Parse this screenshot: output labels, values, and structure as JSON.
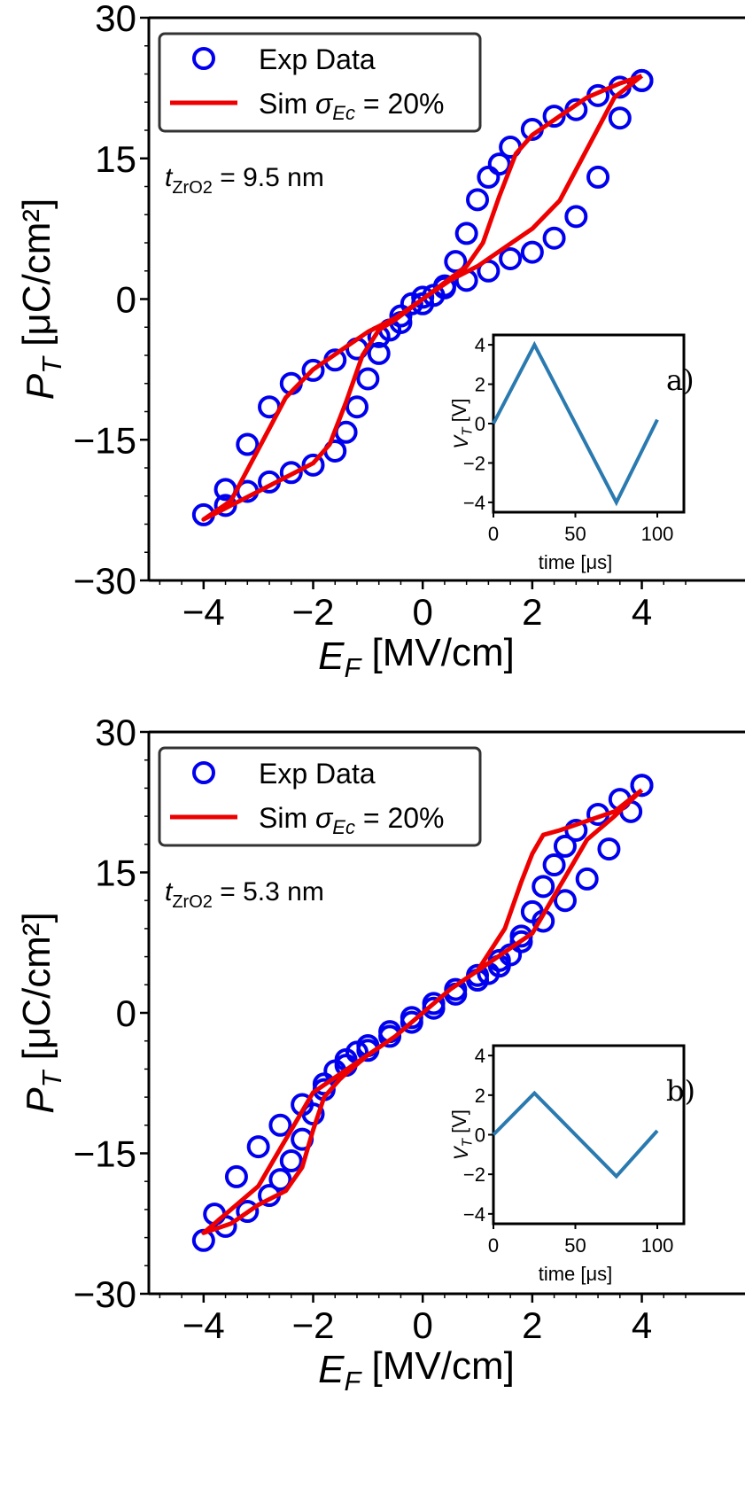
{
  "chart_data": [
    {
      "type": "line",
      "xlabel": "E_F [MV/cm]",
      "ylabel": "P_T [μC/cm²]",
      "xlim": [
        -5.0,
        4.8
      ],
      "ylim": [
        -30,
        30
      ],
      "xticks": [
        "−4",
        "−2",
        "0",
        "2",
        "4"
      ],
      "yticks": [
        "−30",
        "−15",
        "0",
        "15",
        "30"
      ],
      "annotation": "t_ZrO2 = 9.5 nm",
      "panel_label": "a)",
      "legend": {
        "placement": "top-left",
        "entries": [
          "Exp Data",
          "Sim σ_Ec = 20%"
        ]
      },
      "series": [
        {
          "name": "Exp Data",
          "marker": "open-circle",
          "color": "#0000ee",
          "x": [
            4.0,
            3.6,
            3.2,
            2.8,
            2.4,
            2.0,
            1.6,
            1.4,
            1.2,
            1.0,
            0.8,
            0.6,
            0.4,
            0.2,
            0.0,
            -0.4,
            -0.8,
            -1.2,
            -1.6,
            -2.0,
            -2.4,
            -2.8,
            -3.2,
            -3.6,
            -4.0,
            -3.6,
            -3.2,
            -2.8,
            -2.4,
            -2.0,
            -1.6,
            -1.4,
            -1.2,
            -1.0,
            -0.8,
            -0.6,
            -0.4,
            -0.2,
            0.0,
            0.4,
            0.8,
            1.2,
            1.6,
            2.0,
            2.4,
            2.8,
            3.2,
            3.6,
            4.0
          ],
          "y": [
            23.3,
            22.6,
            21.7,
            20.2,
            19.5,
            18.1,
            16.2,
            14.4,
            13.0,
            10.6,
            7.0,
            4.0,
            1.4,
            0.4,
            -0.5,
            -2.5,
            -4.0,
            -5.3,
            -6.5,
            -7.6,
            -9.0,
            -11.5,
            -15.5,
            -20.3,
            -23.0,
            -22.0,
            -20.5,
            -19.5,
            -18.5,
            -17.7,
            -16.2,
            -14.2,
            -11.5,
            -8.5,
            -5.8,
            -3.3,
            -1.8,
            -0.5,
            0.2,
            1.2,
            2.0,
            3.0,
            4.3,
            5.0,
            6.5,
            8.8,
            13.0,
            19.3,
            23.3
          ]
        },
        {
          "name": "Sim σ_Ec = 20%",
          "marker": "line",
          "color": "#ee0000",
          "x": [
            4.0,
            3.6,
            3.0,
            2.5,
            2.0,
            1.7,
            1.4,
            1.1,
            0.8,
            0.5,
            0.0,
            -0.5,
            -1.0,
            -1.5,
            -2.0,
            -2.5,
            -3.0,
            -3.5,
            -4.0,
            -3.5,
            -3.0,
            -2.5,
            -2.0,
            -1.7,
            -1.4,
            -1.1,
            -0.8,
            -0.5,
            0.0,
            0.5,
            1.0,
            1.5,
            2.0,
            2.5,
            3.0,
            3.5,
            4.0
          ],
          "y": [
            23.8,
            23.0,
            21.5,
            19.5,
            17.5,
            15.5,
            11.0,
            6.0,
            3.5,
            2.2,
            0.0,
            -2.0,
            -3.5,
            -5.5,
            -7.5,
            -10.5,
            -16.0,
            -21.5,
            -23.5,
            -22.0,
            -20.5,
            -19.0,
            -17.5,
            -15.5,
            -11.0,
            -6.0,
            -3.3,
            -2.2,
            0.0,
            2.0,
            3.5,
            5.5,
            7.5,
            10.5,
            16.0,
            21.5,
            23.8
          ]
        }
      ],
      "inset": {
        "type": "line",
        "xlabel": "time [μs]",
        "ylabel": "V_T [V]",
        "xlim": [
          0,
          100
        ],
        "ylim": [
          -4.5,
          4.5
        ],
        "xticks": [
          "0",
          "50",
          "100"
        ],
        "yticks": [
          "−4",
          "−2",
          "0",
          "2",
          "4"
        ],
        "x": [
          0,
          25,
          75,
          100
        ],
        "y": [
          0,
          4.0,
          -4.0,
          0.2
        ],
        "color": "#2a7ab0"
      }
    },
    {
      "type": "line",
      "xlabel": "E_F [MV/cm]",
      "ylabel": "P_T [μC/cm²]",
      "xlim": [
        -5.0,
        4.8
      ],
      "ylim": [
        -30,
        30
      ],
      "xticks": [
        "−4",
        "−2",
        "0",
        "2",
        "4"
      ],
      "yticks": [
        "−30",
        "−15",
        "0",
        "15",
        "30"
      ],
      "annotation": "t_ZrO2 = 5.3 nm",
      "panel_label": "b)",
      "legend": {
        "placement": "top-left",
        "entries": [
          "Exp Data",
          "Sim σ_Ec = 20%"
        ]
      },
      "series": [
        {
          "name": "Exp Data",
          "marker": "open-circle",
          "color": "#0000ee",
          "x": [
            4.0,
            3.6,
            3.2,
            2.8,
            2.6,
            2.4,
            2.2,
            2.0,
            1.8,
            1.6,
            1.4,
            1.2,
            1.0,
            0.6,
            0.2,
            -0.2,
            -0.6,
            -1.0,
            -1.4,
            -1.8,
            -2.2,
            -2.6,
            -3.0,
            -3.4,
            -3.8,
            -4.0,
            -3.6,
            -3.2,
            -2.8,
            -2.6,
            -2.4,
            -2.2,
            -2.0,
            -1.8,
            -1.6,
            -1.4,
            -1.2,
            -1.0,
            -0.6,
            -0.2,
            0.2,
            0.6,
            1.0,
            1.4,
            1.8,
            2.2,
            2.6,
            3.0,
            3.4,
            3.8,
            4.0
          ],
          "y": [
            24.3,
            22.8,
            21.2,
            19.5,
            17.8,
            15.8,
            13.5,
            10.8,
            8.2,
            6.2,
            5.0,
            4.2,
            3.5,
            2.0,
            0.5,
            -1.0,
            -2.5,
            -4.0,
            -5.6,
            -7.6,
            -9.8,
            -12.0,
            -14.3,
            -17.5,
            -21.5,
            -24.3,
            -22.8,
            -21.2,
            -19.5,
            -17.8,
            -15.8,
            -13.5,
            -10.8,
            -8.2,
            -6.2,
            -5.0,
            -4.2,
            -3.5,
            -2.0,
            -0.5,
            1.0,
            2.5,
            4.0,
            5.6,
            7.6,
            9.8,
            12.0,
            14.3,
            17.5,
            21.5,
            24.3
          ]
        },
        {
          "name": "Sim σ_Ec = 20%",
          "marker": "line",
          "color": "#ee0000",
          "x": [
            4.0,
            3.5,
            3.0,
            2.5,
            2.2,
            2.0,
            1.8,
            1.5,
            1.0,
            0.5,
            0.0,
            -0.5,
            -1.0,
            -1.5,
            -2.0,
            -2.3,
            -2.6,
            -3.0,
            -3.5,
            -4.0,
            -3.5,
            -3.0,
            -2.5,
            -2.2,
            -2.0,
            -1.8,
            -1.5,
            -1.0,
            -0.5,
            0.0,
            0.5,
            1.0,
            1.5,
            2.0,
            2.3,
            2.6,
            3.0,
            3.5,
            4.0
          ],
          "y": [
            23.8,
            21.5,
            20.5,
            19.5,
            19.0,
            17.0,
            14.0,
            9.0,
            4.5,
            2.5,
            0.0,
            -2.5,
            -4.5,
            -6.5,
            -8.5,
            -11.5,
            -14.5,
            -18.5,
            -21.0,
            -23.5,
            -22.5,
            -20.5,
            -19.0,
            -16.5,
            -12.5,
            -9.0,
            -7.0,
            -4.5,
            -2.5,
            0.0,
            2.5,
            4.5,
            6.5,
            8.5,
            11.5,
            14.5,
            18.5,
            21.0,
            23.8
          ]
        }
      ],
      "inset": {
        "type": "line",
        "xlabel": "time [μs]",
        "ylabel": "V_T [V]",
        "xlim": [
          0,
          100
        ],
        "ylim": [
          -4.5,
          4.5
        ],
        "xticks": [
          "0",
          "50",
          "100"
        ],
        "yticks": [
          "−4",
          "−2",
          "0",
          "2",
          "4"
        ],
        "x": [
          0,
          25,
          75,
          100
        ],
        "y": [
          0,
          2.1,
          -2.1,
          0.2
        ],
        "color": "#2a7ab0"
      }
    }
  ]
}
